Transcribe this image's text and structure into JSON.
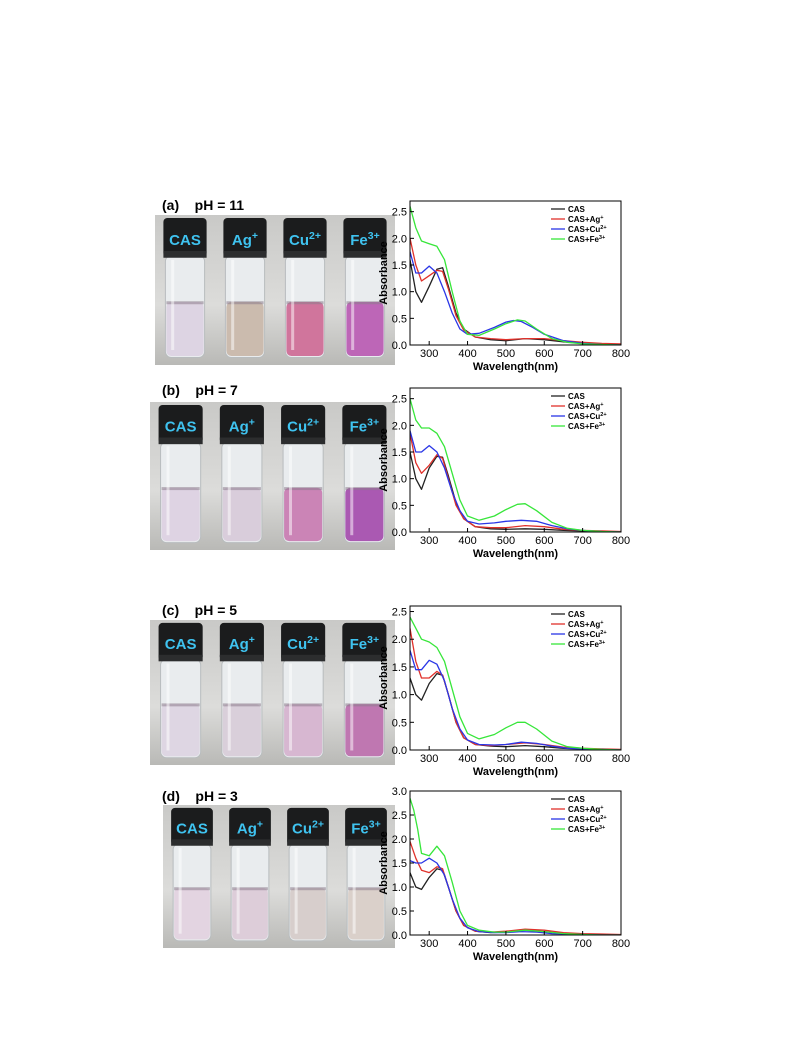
{
  "panels": [
    {
      "label": "(a)    pH = 11",
      "vials": [
        {
          "name": "CAS",
          "sup": "",
          "liquid": "#dcd3e2"
        },
        {
          "name": "Ag",
          "sup": "+",
          "liquid": "#c9b8aa"
        },
        {
          "name": "Cu",
          "sup": "2+",
          "liquid": "#cf6f97"
        },
        {
          "name": "Fe",
          "sup": "3+",
          "liquid": "#bb5fb3"
        }
      ]
    },
    {
      "label": "(b)    pH = 7",
      "vials": [
        {
          "name": "CAS",
          "sup": "",
          "liquid": "#ddd2e1"
        },
        {
          "name": "Ag",
          "sup": "+",
          "liquid": "#d8cbd9"
        },
        {
          "name": "Cu",
          "sup": "2+",
          "liquid": "#c97eb2"
        },
        {
          "name": "Fe",
          "sup": "3+",
          "liquid": "#a651ae"
        }
      ]
    },
    {
      "label": "(c)    pH = 5",
      "vials": [
        {
          "name": "CAS",
          "sup": "",
          "liquid": "#ddd5e2"
        },
        {
          "name": "Ag",
          "sup": "+",
          "liquid": "#d8cdd8"
        },
        {
          "name": "Cu",
          "sup": "2+",
          "liquid": "#d6b4cf"
        },
        {
          "name": "Fe",
          "sup": "3+",
          "liquid": "#bd71ad"
        }
      ]
    },
    {
      "label": "(d)    pH = 3",
      "vials": [
        {
          "name": "CAS",
          "sup": "",
          "liquid": "#e3d3df"
        },
        {
          "name": "Ag",
          "sup": "+",
          "liquid": "#dccbd7"
        },
        {
          "name": "Cu",
          "sup": "2+",
          "liquid": "#d6ccc9"
        },
        {
          "name": "Fe",
          "sup": "3+",
          "liquid": "#d9cfc7"
        }
      ]
    }
  ],
  "chart_data": [
    {
      "type": "line",
      "panel": "a",
      "xlabel": "Wavelength(nm)",
      "ylabel": "Absorbance",
      "xlim": [
        250,
        800
      ],
      "ylim": [
        0,
        2.7
      ],
      "xticks": [
        300,
        400,
        500,
        600,
        700,
        800
      ],
      "yticks": [
        "0.0",
        "0.5",
        "1.0",
        "1.5",
        "2.0",
        "2.5"
      ],
      "legend_position": "top-right",
      "series": [
        {
          "name": "CAS",
          "sup": "",
          "color": "#222222",
          "x": [
            250,
            265,
            280,
            300,
            320,
            335,
            350,
            370,
            390,
            420,
            460,
            500,
            550,
            600,
            650,
            700,
            750,
            800
          ],
          "y": [
            1.6,
            1.0,
            0.8,
            1.1,
            1.42,
            1.45,
            1.1,
            0.6,
            0.3,
            0.15,
            0.1,
            0.08,
            0.12,
            0.1,
            0.06,
            0.03,
            0.02,
            0.01
          ]
        },
        {
          "name": "CAS+Ag",
          "sup": "+",
          "color": "#e0312b",
          "x": [
            250,
            265,
            280,
            300,
            320,
            335,
            350,
            370,
            390,
            420,
            460,
            500,
            550,
            600,
            650,
            700,
            750,
            800
          ],
          "y": [
            2.0,
            1.5,
            1.2,
            1.3,
            1.4,
            1.38,
            1.05,
            0.55,
            0.28,
            0.15,
            0.12,
            0.1,
            0.12,
            0.12,
            0.08,
            0.05,
            0.03,
            0.02
          ]
        },
        {
          "name": "CAS+Cu",
          "sup": "2+",
          "color": "#2a36e6",
          "x": [
            250,
            265,
            280,
            300,
            320,
            340,
            360,
            380,
            400,
            430,
            470,
            500,
            520,
            540,
            570,
            600,
            650,
            700,
            750,
            800
          ],
          "y": [
            1.75,
            1.35,
            1.35,
            1.48,
            1.35,
            1.0,
            0.6,
            0.3,
            0.2,
            0.22,
            0.33,
            0.43,
            0.46,
            0.44,
            0.33,
            0.2,
            0.08,
            0.03,
            0.01,
            0.0
          ]
        },
        {
          "name": "CAS+Fe",
          "sup": "3+",
          "color": "#37e63a",
          "x": [
            250,
            265,
            280,
            300,
            320,
            340,
            360,
            380,
            400,
            430,
            470,
            500,
            530,
            550,
            580,
            620,
            660,
            700,
            750,
            800
          ],
          "y": [
            2.6,
            2.2,
            1.95,
            1.9,
            1.85,
            1.6,
            1.0,
            0.45,
            0.2,
            0.18,
            0.3,
            0.4,
            0.47,
            0.45,
            0.3,
            0.12,
            0.05,
            0.02,
            0.01,
            0.0
          ]
        }
      ]
    },
    {
      "type": "line",
      "panel": "b",
      "xlabel": "Wavelength(nm)",
      "ylabel": "Absorbance",
      "xlim": [
        250,
        800
      ],
      "ylim": [
        0,
        2.7
      ],
      "xticks": [
        300,
        400,
        500,
        600,
        700,
        800
      ],
      "yticks": [
        "0.0",
        "0.5",
        "1.0",
        "1.5",
        "2.0",
        "2.5"
      ],
      "legend_position": "top-right",
      "series": [
        {
          "name": "CAS",
          "sup": "",
          "color": "#222222",
          "x": [
            250,
            265,
            280,
            300,
            320,
            335,
            350,
            370,
            390,
            420,
            460,
            500,
            550,
            600,
            650,
            700,
            750,
            800
          ],
          "y": [
            1.5,
            1.0,
            0.8,
            1.2,
            1.42,
            1.4,
            1.05,
            0.55,
            0.25,
            0.1,
            0.06,
            0.05,
            0.06,
            0.05,
            0.03,
            0.02,
            0.01,
            0.0
          ]
        },
        {
          "name": "CAS+Ag",
          "sup": "+",
          "color": "#e0312b",
          "x": [
            250,
            265,
            280,
            300,
            320,
            335,
            350,
            370,
            390,
            420,
            460,
            500,
            550,
            600,
            650,
            700,
            750,
            800
          ],
          "y": [
            1.85,
            1.3,
            1.1,
            1.25,
            1.45,
            1.38,
            1.0,
            0.5,
            0.25,
            0.1,
            0.08,
            0.08,
            0.12,
            0.1,
            0.05,
            0.03,
            0.02,
            0.01
          ]
        },
        {
          "name": "CAS+Cu",
          "sup": "2+",
          "color": "#2a36e6",
          "x": [
            250,
            265,
            280,
            300,
            320,
            340,
            360,
            380,
            400,
            430,
            470,
            500,
            540,
            580,
            620,
            660,
            700,
            750,
            800
          ],
          "y": [
            1.9,
            1.5,
            1.5,
            1.62,
            1.5,
            1.2,
            0.75,
            0.4,
            0.2,
            0.15,
            0.17,
            0.2,
            0.22,
            0.2,
            0.12,
            0.06,
            0.03,
            0.01,
            0.0
          ]
        },
        {
          "name": "CAS+Fe",
          "sup": "3+",
          "color": "#37e63a",
          "x": [
            250,
            265,
            280,
            300,
            320,
            340,
            360,
            380,
            400,
            430,
            470,
            500,
            530,
            550,
            580,
            620,
            660,
            700,
            750,
            800
          ],
          "y": [
            2.5,
            2.1,
            1.95,
            1.95,
            1.85,
            1.6,
            1.1,
            0.6,
            0.3,
            0.22,
            0.3,
            0.42,
            0.52,
            0.53,
            0.4,
            0.18,
            0.07,
            0.03,
            0.01,
            0.0
          ]
        }
      ]
    },
    {
      "type": "line",
      "panel": "c",
      "xlabel": "Wavelength(nm)",
      "ylabel": "Absorbance",
      "xlim": [
        250,
        800
      ],
      "ylim": [
        0,
        2.6
      ],
      "xticks": [
        300,
        400,
        500,
        600,
        700,
        800
      ],
      "yticks": [
        "0.0",
        "0.5",
        "1.0",
        "1.5",
        "2.0",
        "2.5"
      ],
      "legend_position": "top-right",
      "series": [
        {
          "name": "CAS",
          "sup": "",
          "color": "#222222",
          "x": [
            250,
            265,
            280,
            300,
            320,
            335,
            350,
            370,
            390,
            420,
            460,
            500,
            550,
            600,
            650,
            700,
            750,
            800
          ],
          "y": [
            1.3,
            1.0,
            0.9,
            1.2,
            1.38,
            1.35,
            1.0,
            0.5,
            0.22,
            0.1,
            0.07,
            0.06,
            0.08,
            0.06,
            0.03,
            0.02,
            0.01,
            0.0
          ]
        },
        {
          "name": "CAS+Ag",
          "sup": "+",
          "color": "#e0312b",
          "x": [
            250,
            265,
            280,
            300,
            320,
            335,
            350,
            370,
            390,
            420,
            460,
            500,
            550,
            600,
            650,
            700,
            750,
            800
          ],
          "y": [
            2.2,
            1.6,
            1.3,
            1.3,
            1.42,
            1.35,
            1.0,
            0.5,
            0.22,
            0.1,
            0.08,
            0.1,
            0.13,
            0.1,
            0.05,
            0.03,
            0.02,
            0.01
          ]
        },
        {
          "name": "CAS+Cu",
          "sup": "2+",
          "color": "#2a36e6",
          "x": [
            250,
            265,
            280,
            300,
            320,
            340,
            360,
            380,
            400,
            430,
            470,
            500,
            540,
            580,
            620,
            660,
            700,
            750,
            800
          ],
          "y": [
            1.8,
            1.45,
            1.45,
            1.62,
            1.55,
            1.25,
            0.75,
            0.38,
            0.18,
            0.1,
            0.09,
            0.1,
            0.14,
            0.12,
            0.07,
            0.03,
            0.02,
            0.01,
            0.0
          ]
        },
        {
          "name": "CAS+Fe",
          "sup": "3+",
          "color": "#37e63a",
          "x": [
            250,
            265,
            280,
            300,
            320,
            340,
            360,
            380,
            400,
            430,
            470,
            500,
            530,
            550,
            580,
            620,
            660,
            700,
            750,
            800
          ],
          "y": [
            2.4,
            2.2,
            2.0,
            1.95,
            1.85,
            1.6,
            1.1,
            0.6,
            0.3,
            0.2,
            0.28,
            0.4,
            0.5,
            0.5,
            0.38,
            0.16,
            0.06,
            0.03,
            0.01,
            0.0
          ]
        }
      ]
    },
    {
      "type": "line",
      "panel": "d",
      "xlabel": "Wavelength(nm)",
      "ylabel": "Absorbance",
      "xlim": [
        250,
        800
      ],
      "ylim": [
        0,
        3.0
      ],
      "xticks": [
        300,
        400,
        500,
        600,
        700,
        800
      ],
      "yticks": [
        "0.0",
        "0.5",
        "1.0",
        "1.5",
        "2.0",
        "2.5",
        "3.0"
      ],
      "legend_position": "top-right",
      "series": [
        {
          "name": "CAS",
          "sup": "",
          "color": "#222222",
          "x": [
            250,
            265,
            280,
            300,
            320,
            335,
            350,
            370,
            390,
            420,
            460,
            500,
            550,
            600,
            650,
            700,
            750,
            800
          ],
          "y": [
            1.3,
            1.0,
            0.95,
            1.2,
            1.38,
            1.35,
            1.0,
            0.5,
            0.2,
            0.08,
            0.05,
            0.06,
            0.1,
            0.07,
            0.03,
            0.02,
            0.01,
            0.0
          ]
        },
        {
          "name": "CAS+Ag",
          "sup": "+",
          "color": "#e0312b",
          "x": [
            250,
            265,
            280,
            300,
            320,
            335,
            350,
            370,
            390,
            420,
            460,
            500,
            550,
            600,
            650,
            700,
            750,
            800
          ],
          "y": [
            1.95,
            1.6,
            1.35,
            1.3,
            1.42,
            1.38,
            1.0,
            0.5,
            0.2,
            0.08,
            0.06,
            0.08,
            0.12,
            0.1,
            0.05,
            0.03,
            0.02,
            0.01
          ]
        },
        {
          "name": "CAS+Cu",
          "sup": "2+",
          "color": "#2a36e6",
          "x": [
            250,
            265,
            280,
            300,
            320,
            340,
            360,
            380,
            400,
            430,
            470,
            500,
            540,
            580,
            620,
            660,
            700,
            750,
            800
          ],
          "y": [
            1.55,
            1.5,
            1.5,
            1.6,
            1.5,
            1.25,
            0.75,
            0.35,
            0.15,
            0.07,
            0.05,
            0.05,
            0.07,
            0.06,
            0.03,
            0.02,
            0.01,
            0.0,
            0.0
          ]
        },
        {
          "name": "CAS+Fe",
          "sup": "3+",
          "color": "#37e63a",
          "x": [
            250,
            260,
            270,
            280,
            300,
            320,
            340,
            360,
            380,
            400,
            430,
            470,
            500,
            550,
            600,
            650,
            700,
            750,
            800
          ],
          "y": [
            2.85,
            2.6,
            2.2,
            1.7,
            1.65,
            1.85,
            1.65,
            1.1,
            0.5,
            0.2,
            0.1,
            0.06,
            0.06,
            0.1,
            0.07,
            0.03,
            0.01,
            0.0,
            0.0
          ]
        }
      ]
    }
  ]
}
